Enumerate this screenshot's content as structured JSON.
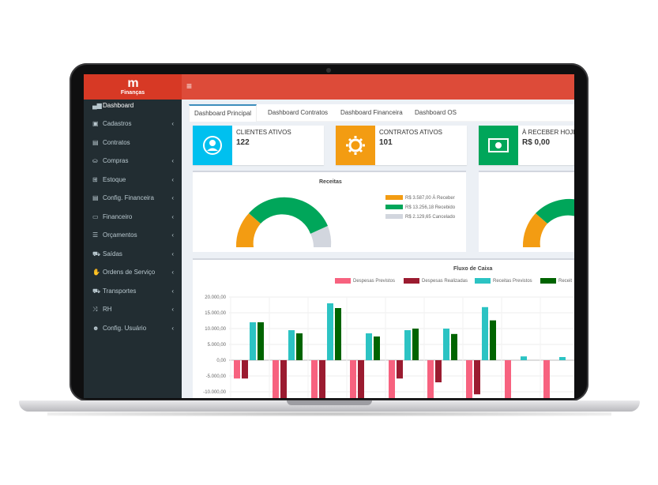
{
  "app": {
    "logo_mark": "m",
    "logo_name": "Finanças",
    "menu_icon": "hamburger-icon"
  },
  "sidebar": {
    "items": [
      {
        "label": "Dashboard",
        "icon": "dashboard-icon",
        "glyph": "▄▆",
        "chevron": ""
      },
      {
        "label": "Cadastros",
        "icon": "id-card-icon",
        "glyph": "▣",
        "chevron": "‹"
      },
      {
        "label": "Contratos",
        "icon": "file-icon",
        "glyph": "▤",
        "chevron": ""
      },
      {
        "label": "Compras",
        "icon": "bag-icon",
        "glyph": "⛀",
        "chevron": "‹"
      },
      {
        "label": "Estoque",
        "icon": "boxes-icon",
        "glyph": "⊞",
        "chevron": "‹"
      },
      {
        "label": "Config. Financeira",
        "icon": "money-icon",
        "glyph": "▤",
        "chevron": "‹"
      },
      {
        "label": "Financeiro",
        "icon": "cash-icon",
        "glyph": "▭",
        "chevron": "‹"
      },
      {
        "label": "Orçamentos",
        "icon": "list-icon",
        "glyph": "☰",
        "chevron": "‹"
      },
      {
        "label": "Saídas",
        "icon": "cart-icon",
        "glyph": "⛟",
        "chevron": "‹"
      },
      {
        "label": "Ordens de Serviço",
        "icon": "tools-icon",
        "glyph": "✋",
        "chevron": "‹"
      },
      {
        "label": "Transportes",
        "icon": "truck-icon",
        "glyph": "⛟",
        "chevron": "‹"
      },
      {
        "label": "RH",
        "icon": "shuffle-icon",
        "glyph": "⤨",
        "chevron": "‹"
      },
      {
        "label": "Config. Usuário",
        "icon": "users-icon",
        "glyph": "☻",
        "chevron": "‹"
      }
    ]
  },
  "tabs": [
    "Dashboard Principal",
    "Dashboard Contratos",
    "Dashboard Financeira",
    "Dashboard OS"
  ],
  "infoboxes": [
    {
      "label": "CLIENTES ATIVOS",
      "value": "122",
      "color": "#00c0ef",
      "icon": "user-icon"
    },
    {
      "label": "CONTRATOS ATIVOS",
      "value": "101",
      "color": "#f39c12",
      "icon": "gear-icon"
    },
    {
      "label": "À RECEBER HOJE",
      "value": "R$ 0,00",
      "color": "#00a65a",
      "icon": "money-bill-icon"
    }
  ],
  "receitas": {
    "title": "Receitas",
    "legend": [
      {
        "label": "R$ 3.587,00 À Receber",
        "color": "#f39c12"
      },
      {
        "label": "R$ 13.256,18 Recebido",
        "color": "#00a65a"
      },
      {
        "label": "R$ 2.129,65 Cancelado",
        "color": "#d2d6de"
      }
    ]
  },
  "chart_data": {
    "type": "bar",
    "title": "Fluxo de Caixa",
    "series": [
      {
        "name": "Despesas Previstos",
        "color": "#f7627f",
        "values": [
          -5800,
          -12800,
          -14500,
          -14500,
          -14500,
          -14500,
          -14500,
          -14500,
          -14500
        ]
      },
      {
        "name": "Despesas Realizadas",
        "color": "#9b1b30",
        "values": [
          -5800,
          -13000,
          -14500,
          -14500,
          -5800,
          -7000,
          -10800,
          0,
          0
        ]
      },
      {
        "name": "Receitas Previstos",
        "color": "#2cc3c3",
        "values": [
          12000,
          9500,
          18000,
          8500,
          9500,
          10000,
          16800,
          1200,
          1000
        ]
      },
      {
        "name": "Receitas Realizadas",
        "color": "#006400",
        "values": [
          12000,
          8500,
          16500,
          7500,
          10000,
          8300,
          12600,
          0,
          0
        ]
      }
    ],
    "yticks": [
      "20.000,00",
      "15.000,00",
      "10.000,00",
      "5.000,00",
      "0,00",
      "-5.000,00",
      "-10.000,00"
    ],
    "ylim": [
      -14500,
      20000
    ],
    "legend_visible": [
      "Despesas Previstos",
      "Despesas Realizadas",
      "Receitas Previstos",
      "Receit"
    ]
  }
}
